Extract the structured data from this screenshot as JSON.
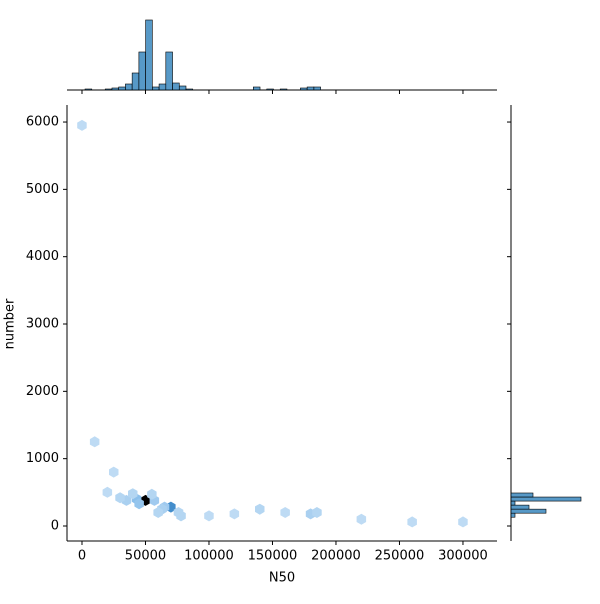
{
  "chart_data": {
    "type": "hexbin",
    "x_label": "N50",
    "y_label": "number",
    "xlim": [
      -11800,
      326800
    ],
    "ylim": [
      -223,
      6253
    ],
    "xticks": [
      0,
      50000,
      100000,
      150000,
      200000,
      250000,
      300000
    ],
    "yticks": [
      0,
      1000,
      2000,
      3000,
      4000,
      5000,
      6000
    ],
    "color": "#1f77b4",
    "cmap": [
      "#ffffff",
      "#4a9be0",
      "#000000"
    ],
    "cells": {
      "x": [
        50000,
        43000,
        57000,
        45000,
        70000,
        65000,
        63000,
        76000,
        78000,
        35000,
        30000,
        40000,
        55000,
        20000,
        25000,
        10000,
        0,
        140000,
        160000,
        180000,
        185000,
        120000,
        100000,
        220000,
        260000,
        300000,
        60000
      ],
      "y": [
        380,
        400,
        380,
        330,
        280,
        280,
        250,
        200,
        150,
        380,
        420,
        480,
        470,
        500,
        800,
        1250,
        5950,
        250,
        200,
        180,
        200,
        180,
        150,
        100,
        60,
        60,
        200
      ],
      "counts": [
        30,
        6,
        4,
        5,
        14,
        4,
        3,
        2,
        2,
        3,
        2,
        2,
        2,
        1,
        1,
        1,
        1,
        2,
        1,
        3,
        2,
        1,
        1,
        1,
        1,
        1,
        2
      ]
    },
    "marginal_x": {
      "bins": [
        2400,
        7700,
        13000,
        18300,
        23600,
        28900,
        34200,
        39500,
        44800,
        50100,
        55400,
        60700,
        66000,
        71300,
        76600,
        81900,
        87200,
        92500,
        97800,
        103100,
        108400,
        113700,
        119000,
        124300,
        129600,
        134900,
        140200,
        145500,
        150800,
        156100,
        161400,
        166700,
        172000,
        177300,
        182600,
        187900
      ],
      "counts": [
        1,
        0,
        0,
        1,
        2,
        3,
        6,
        17,
        38,
        70,
        3,
        6,
        38,
        7,
        4,
        1,
        0,
        0,
        0,
        0,
        0,
        0,
        0,
        0,
        0,
        3,
        0,
        1,
        0,
        1,
        0,
        0,
        2,
        3,
        3
      ]
    },
    "marginal_y": {
      "bins": [
        130,
        190,
        250,
        310,
        370,
        430,
        490
      ],
      "counts": [
        4,
        35,
        18,
        4,
        70,
        22
      ]
    }
  }
}
